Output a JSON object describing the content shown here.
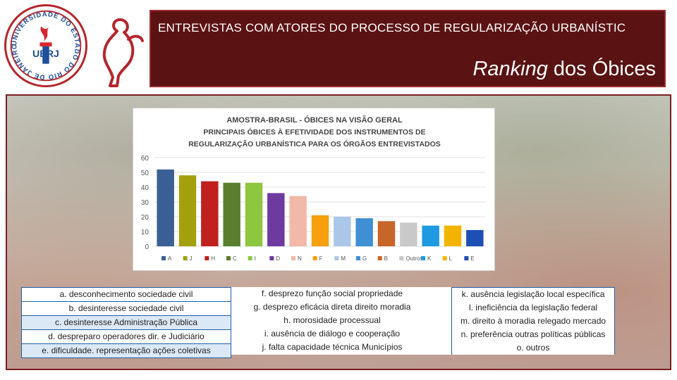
{
  "header": {
    "title": "ENTREVISTAS COM ATORES DO PROCESSO DE REGULARIZAÇÃO URBANÍSTIC",
    "subtitle_italic": "Ranking",
    "subtitle_rest": " dos Óbices",
    "logo_text": "UERJ",
    "logo_ring_text": "UNIVERSIDADE DO ESTADO DO RIO DE JANEIRO"
  },
  "colors": {
    "banner": "#5b1213",
    "accent": "#b3262c",
    "table_border": "#1f5fa8"
  },
  "chart_data": {
    "type": "bar",
    "title_lines": [
      "Amostra-Brasil  - Óbices na Visão Geral",
      "Principais óbices à efetividade dos instrumentos de",
      "regularização urbanística para os órgãos entrevistados"
    ],
    "categories": [
      "A",
      "J",
      "H",
      "C",
      "I",
      "D",
      "N",
      "F",
      "M",
      "G",
      "B",
      "Outros",
      "K",
      "L",
      "E"
    ],
    "values": [
      52,
      48,
      44,
      43,
      43,
      36,
      34,
      21,
      20,
      19,
      17,
      16,
      14,
      14,
      11
    ],
    "colors": [
      "#3a5f95",
      "#a3a00e",
      "#c0201e",
      "#5a7f2f",
      "#8dc63f",
      "#6e3aa0",
      "#f2b8a8",
      "#f5a00c",
      "#aac6e8",
      "#3f8fd4",
      "#c8652a",
      "#c9c9c9",
      "#1f9ae0",
      "#f3b400",
      "#1e4fb5"
    ],
    "y_ticks": [
      0,
      10,
      20,
      30,
      40,
      50,
      60
    ],
    "ylim": [
      0,
      60
    ],
    "grid": true,
    "legend_position": "bottom"
  },
  "legend_table": {
    "col1": [
      "a. desconhecimento sociedade civil",
      "b. desinteresse sociedade civil",
      "c. desinteresse Administração Pública",
      "d. despreparo operadores  dir. e Judiciário",
      "e. dificuldade. representação ações coletivas"
    ],
    "col2": [
      "f. desprezo função social propriedade",
      "g. desprezo eficácia direta direito  moradia",
      "h. morosidade processual",
      "i. ausência de diálogo e cooperação",
      "j. falta capacidade técnica Municípios"
    ],
    "col3": [
      "k. ausência  legislação local específica",
      "l. ineficiência da legislação federal",
      "m. direito à moradia relegado mercado",
      "n. preferência outras políticas públicas",
      "o. outros"
    ]
  }
}
